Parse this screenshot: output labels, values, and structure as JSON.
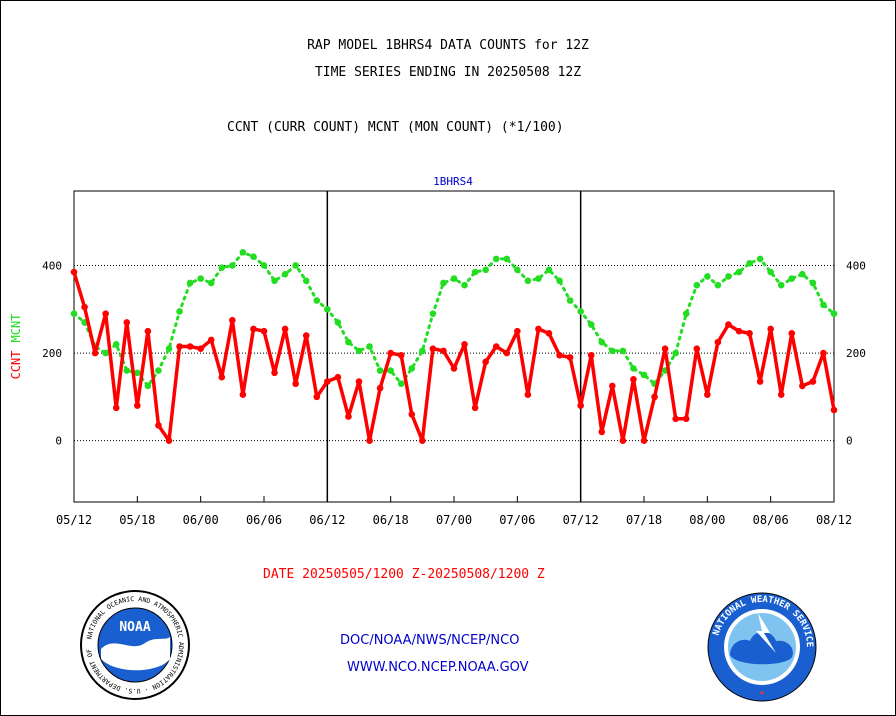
{
  "titles": {
    "line1": "RAP MODEL 1BHRS4 DATA COUNTS for 12Z",
    "line2": "TIME SERIES ENDING IN 20250508 12Z",
    "line3": "CCNT (CURR COUNT) MCNT (MON COUNT) (*1/100)"
  },
  "date_range": "DATE 20250505/1200 Z-20250508/1200 Z",
  "footer": {
    "org_line": "DOC/NOAA/NWS/NCEP/NCO",
    "url_line": "WWW.NCO.NCEP.NOAA.GOV"
  },
  "logos": {
    "noaa_text": "NOAA",
    "noaa_ring_text": "NATIONAL OCEANIC AND ATMOSPHERIC ADMINISTRATION · U.S. DEPARTMENT OF COMMERCE",
    "nws_ring_text": "NATIONAL WEATHER SERVICE"
  },
  "colors": {
    "ccnt": "#ff0000",
    "mcnt": "#22dd22",
    "panel_label": "#0000cc",
    "footer_text": "#0000cc",
    "date_text": "#ff0000"
  },
  "chart_data": {
    "type": "line",
    "title": "1BHRS4",
    "ylabel_left": [
      "CCNT",
      "MCNT"
    ],
    "ylim": [
      -140,
      570
    ],
    "yticks": [
      0,
      200,
      400
    ],
    "grid_y": [
      0,
      200,
      400
    ],
    "x_tick_labels": [
      "05/12",
      "05/18",
      "06/00",
      "06/06",
      "06/12",
      "06/18",
      "07/00",
      "07/06",
      "07/12",
      "07/18",
      "08/00",
      "08/06",
      "08/12"
    ],
    "panel_separators_at": [
      "06/12",
      "07/12"
    ],
    "series": [
      {
        "name": "CCNT",
        "values": [
          385,
          305,
          200,
          290,
          75,
          270,
          80,
          250,
          35,
          0,
          215,
          215,
          210,
          230,
          145,
          275,
          105,
          255,
          250,
          155,
          255,
          130,
          240,
          100,
          135,
          145,
          55,
          135,
          0,
          120,
          200,
          195,
          60,
          0,
          210,
          205,
          165,
          220,
          75,
          180,
          215,
          200,
          250,
          105,
          255,
          245,
          195,
          190,
          80,
          195,
          20,
          125,
          0,
          140,
          0,
          100,
          210,
          50,
          50,
          210,
          105,
          225,
          265,
          250,
          245,
          135,
          255,
          105,
          245,
          125,
          135,
          200,
          70
        ]
      },
      {
        "name": "MCNT",
        "values": [
          290,
          270,
          215,
          200,
          220,
          160,
          155,
          125,
          160,
          210,
          295,
          360,
          370,
          360,
          395,
          400,
          430,
          420,
          400,
          365,
          380,
          400,
          365,
          320,
          300,
          270,
          225,
          205,
          215,
          160,
          160,
          130,
          165,
          205,
          290,
          360,
          370,
          355,
          385,
          390,
          415,
          415,
          390,
          365,
          370,
          390,
          365,
          320,
          295,
          265,
          225,
          205,
          205,
          165,
          150,
          130,
          160,
          200,
          290,
          355,
          375,
          355,
          375,
          385,
          405,
          415,
          385,
          355,
          370,
          380,
          360,
          310,
          290
        ]
      }
    ]
  }
}
